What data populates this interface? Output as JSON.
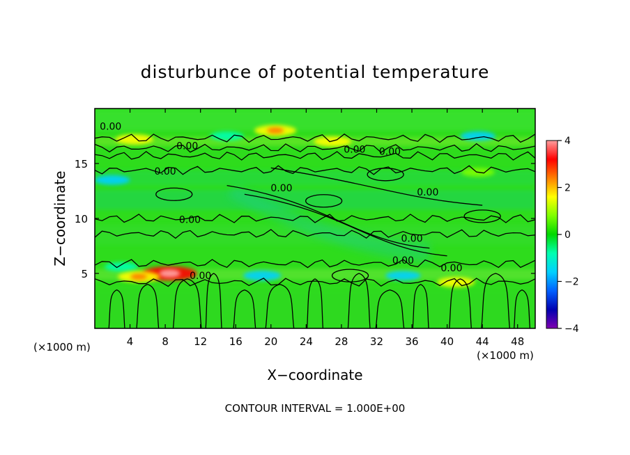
{
  "chart_data": {
    "type": "heatmap",
    "title": "disturbunce of potential temperature",
    "xlabel": "X−coordinate",
    "ylabel": "Z−coordinate",
    "x_unit_left": "(×1000 m)",
    "x_unit_right": "(×1000 m)",
    "footer": "CONTOUR INTERVAL = 1.000E+00",
    "xlim": [
      0,
      50
    ],
    "ylim": [
      0,
      20
    ],
    "x_ticks": [
      4,
      8,
      12,
      16,
      20,
      24,
      28,
      32,
      36,
      40,
      44,
      48
    ],
    "x_tick_labels": [
      "4",
      "8",
      "12",
      "16",
      "20",
      "24",
      "28",
      "32",
      "36",
      "40",
      "44",
      "48"
    ],
    "y_ticks": [
      5,
      10,
      15
    ],
    "y_tick_labels": [
      "5",
      "10",
      "15"
    ],
    "colorbar": {
      "range": [
        -4,
        4
      ],
      "ticks": [
        4,
        2,
        0,
        -2,
        -4
      ],
      "tick_labels": [
        "4",
        "2",
        "0",
        "−2",
        "−4"
      ],
      "colors": [
        "#ff9e9e",
        "#ff0000",
        "#ff7f00",
        "#ffff00",
        "#7fff00",
        "#00d800",
        "#00ffb0",
        "#00d0ff",
        "#0060ff",
        "#0000b0",
        "#7f00b0"
      ]
    },
    "contour_labels": [
      {
        "x": 1.8,
        "y": 18.4,
        "text": "0.00"
      },
      {
        "x": 10.5,
        "y": 16.6,
        "text": "0.00"
      },
      {
        "x": 8.0,
        "y": 14.3,
        "text": "0.00"
      },
      {
        "x": 21.2,
        "y": 12.8,
        "text": "0.00"
      },
      {
        "x": 29.5,
        "y": 16.3,
        "text": "0.00"
      },
      {
        "x": 33.5,
        "y": 16.1,
        "text": "0.00"
      },
      {
        "x": 37.8,
        "y": 12.4,
        "text": "0.00"
      },
      {
        "x": 10.8,
        "y": 9.9,
        "text": "0.00"
      },
      {
        "x": 36.0,
        "y": 8.2,
        "text": "0.00"
      },
      {
        "x": 35.0,
        "y": 6.2,
        "text": "0.00"
      },
      {
        "x": 40.5,
        "y": 5.5,
        "text": "0.00"
      },
      {
        "x": 12.0,
        "y": 4.8,
        "text": "0.00"
      }
    ],
    "warm_anomalies": [
      {
        "x": 8.5,
        "y": 5.0,
        "value": 3.5
      },
      {
        "x": 5.0,
        "y": 4.7,
        "value": 2.0
      },
      {
        "x": 20.5,
        "y": 18.0,
        "value": 2.0
      },
      {
        "x": 4.5,
        "y": 17.2,
        "value": 1.5
      },
      {
        "x": 27.0,
        "y": 17.0,
        "value": 1.5
      },
      {
        "x": 41.0,
        "y": 4.2,
        "value": 1.5
      },
      {
        "x": 43.5,
        "y": 14.2,
        "value": 1.0
      }
    ],
    "cold_anomalies": [
      {
        "x": 2.0,
        "y": 13.5,
        "value": -1.2
      },
      {
        "x": 19.0,
        "y": 4.8,
        "value": -1.5
      },
      {
        "x": 35.0,
        "y": 4.8,
        "value": -1.2
      },
      {
        "x": 43.5,
        "y": 17.5,
        "value": -1.2
      },
      {
        "x": 15.0,
        "y": 17.5,
        "value": -1.0
      },
      {
        "x": 3.0,
        "y": 5.6,
        "value": -1.0
      }
    ]
  }
}
